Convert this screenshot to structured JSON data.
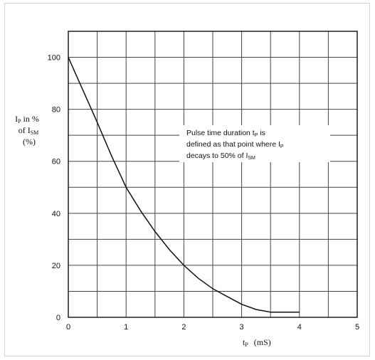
{
  "chart_data": {
    "type": "line",
    "title": "",
    "xlabel": {
      "var": "t",
      "sub": "P",
      "unit": "(mS)"
    },
    "ylabel": {
      "line1": {
        "var": "I",
        "sub": "P",
        "rest": " in %"
      },
      "line2": {
        "pre": "of I",
        "sub": "SM"
      },
      "line3": "(%)"
    },
    "xlim": [
      0,
      5
    ],
    "ylim": [
      0,
      110
    ],
    "x_ticks": [
      0,
      1,
      2,
      3,
      4,
      5
    ],
    "y_ticks": [
      0,
      20,
      40,
      60,
      80,
      100
    ],
    "grid": true,
    "x_grid_step": 0.5,
    "y_grid_step": 10,
    "series": [
      {
        "x": [
          0,
          0.1,
          0.2,
          0.3,
          0.4,
          0.5,
          0.75,
          1.0,
          1.25,
          1.5,
          1.75,
          2.0,
          2.25,
          2.5,
          2.75,
          3.0,
          3.25,
          3.5,
          3.75,
          4.0
        ],
        "y": [
          100,
          95,
          90,
          85,
          80,
          75,
          62,
          50,
          41,
          33,
          26,
          20,
          15,
          11,
          8,
          5,
          3,
          2,
          2,
          2
        ]
      }
    ],
    "annotation": {
      "line1": {
        "a": "Pulse time duration t",
        "sub": "P",
        "b": " is"
      },
      "line2": {
        "a": "defined as that point where I",
        "sub": "P"
      },
      "line3": {
        "a": "decays to 50% of I",
        "sub": "SM"
      }
    },
    "colors": {
      "line": "#111111",
      "grid": "#444444",
      "axis": "#111111"
    }
  }
}
